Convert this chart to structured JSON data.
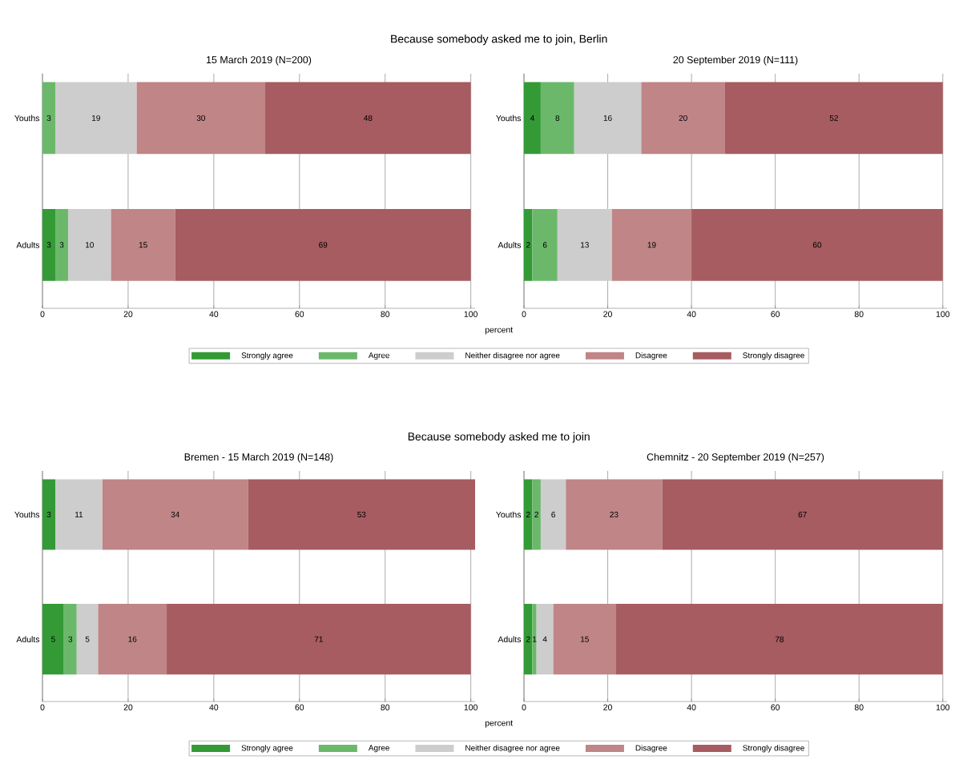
{
  "chart_data": [
    {
      "type": "bar",
      "orientation": "horizontal",
      "stacked": true,
      "title": "15 March 2019 (N=200)",
      "annotations": [
        "Because somebody asked me to join, Berlin"
      ],
      "xlabel": "percent",
      "categories": [
        "Youths",
        "Adults"
      ],
      "xlim": [
        0,
        101
      ],
      "xticks": [
        0,
        20,
        40,
        60,
        80,
        100
      ],
      "grid": "x",
      "data_labels": true,
      "legend": "bottom",
      "series": [
        {
          "name": "Strongly agree",
          "color": "#349a36",
          "values": [
            null,
            3
          ]
        },
        {
          "name": "Agree",
          "color": "#6bb86b",
          "values": [
            3,
            3
          ]
        },
        {
          "name": "Neither disagree nor agree",
          "color": "#cdcdcd",
          "values": [
            19,
            10
          ]
        },
        {
          "name": "Disagree",
          "color": "#bf8587",
          "values": [
            30,
            15
          ]
        },
        {
          "name": "Strongly disagree",
          "color": "#a65c61",
          "values": [
            48,
            69
          ]
        }
      ]
    },
    {
      "type": "bar",
      "orientation": "horizontal",
      "stacked": true,
      "title": "20 September 2019 (N=111)",
      "categories": [
        "Youths",
        "Adults"
      ],
      "xlim": [
        0,
        101
      ],
      "xticks": [
        0,
        20,
        40,
        60,
        80,
        100
      ],
      "grid": "x",
      "data_labels": true,
      "series": [
        {
          "color": "#349a36",
          "values": [
            4,
            2
          ]
        },
        {
          "color": "#6bb86b",
          "values": [
            8,
            6
          ]
        },
        {
          "color": "#cdcdcd",
          "values": [
            16,
            13
          ]
        },
        {
          "color": "#bf8587",
          "values": [
            20,
            19
          ]
        },
        {
          "color": "#a65c61",
          "values": [
            52,
            60
          ]
        }
      ]
    },
    {
      "type": "bar",
      "orientation": "horizontal",
      "stacked": true,
      "title": "Bremen - 15 March 2019 (N=148)",
      "annotations": [
        "Because somebody asked me to join"
      ],
      "xlabel": "percent",
      "categories": [
        "Youths",
        "Adults"
      ],
      "xlim": [
        0,
        101
      ],
      "xticks": [
        0,
        20,
        40,
        60,
        80,
        100
      ],
      "grid": "x",
      "data_labels": true,
      "legend": "bottom",
      "series": [
        {
          "name": "Strongly agree",
          "color": "#349a36",
          "values": [
            3,
            5
          ]
        },
        {
          "name": "Agree",
          "color": "#6bb86b",
          "values": [
            null,
            3
          ]
        },
        {
          "name": "Neither disagree nor agree",
          "color": "#cdcdcd",
          "values": [
            11,
            5
          ]
        },
        {
          "name": "Disagree",
          "color": "#bf8587",
          "values": [
            34,
            16
          ]
        },
        {
          "name": "Strongly disagree",
          "color": "#a65c61",
          "values": [
            53,
            71
          ]
        }
      ]
    },
    {
      "type": "bar",
      "orientation": "horizontal",
      "stacked": true,
      "title": "Chemnitz - 20 September 2019 (N=257)",
      "categories": [
        "Youths",
        "Adults"
      ],
      "xlim": [
        0,
        101
      ],
      "xticks": [
        0,
        20,
        40,
        60,
        80,
        100
      ],
      "grid": "x",
      "data_labels": true,
      "series": [
        {
          "color": "#349a36",
          "values": [
            2,
            2
          ]
        },
        {
          "color": "#6bb86b",
          "values": [
            2,
            1
          ]
        },
        {
          "color": "#cdcdcd",
          "values": [
            6,
            4
          ]
        },
        {
          "color": "#bf8587",
          "values": [
            23,
            15
          ]
        },
        {
          "color": "#a65c61",
          "values": [
            67,
            78
          ]
        }
      ]
    }
  ]
}
